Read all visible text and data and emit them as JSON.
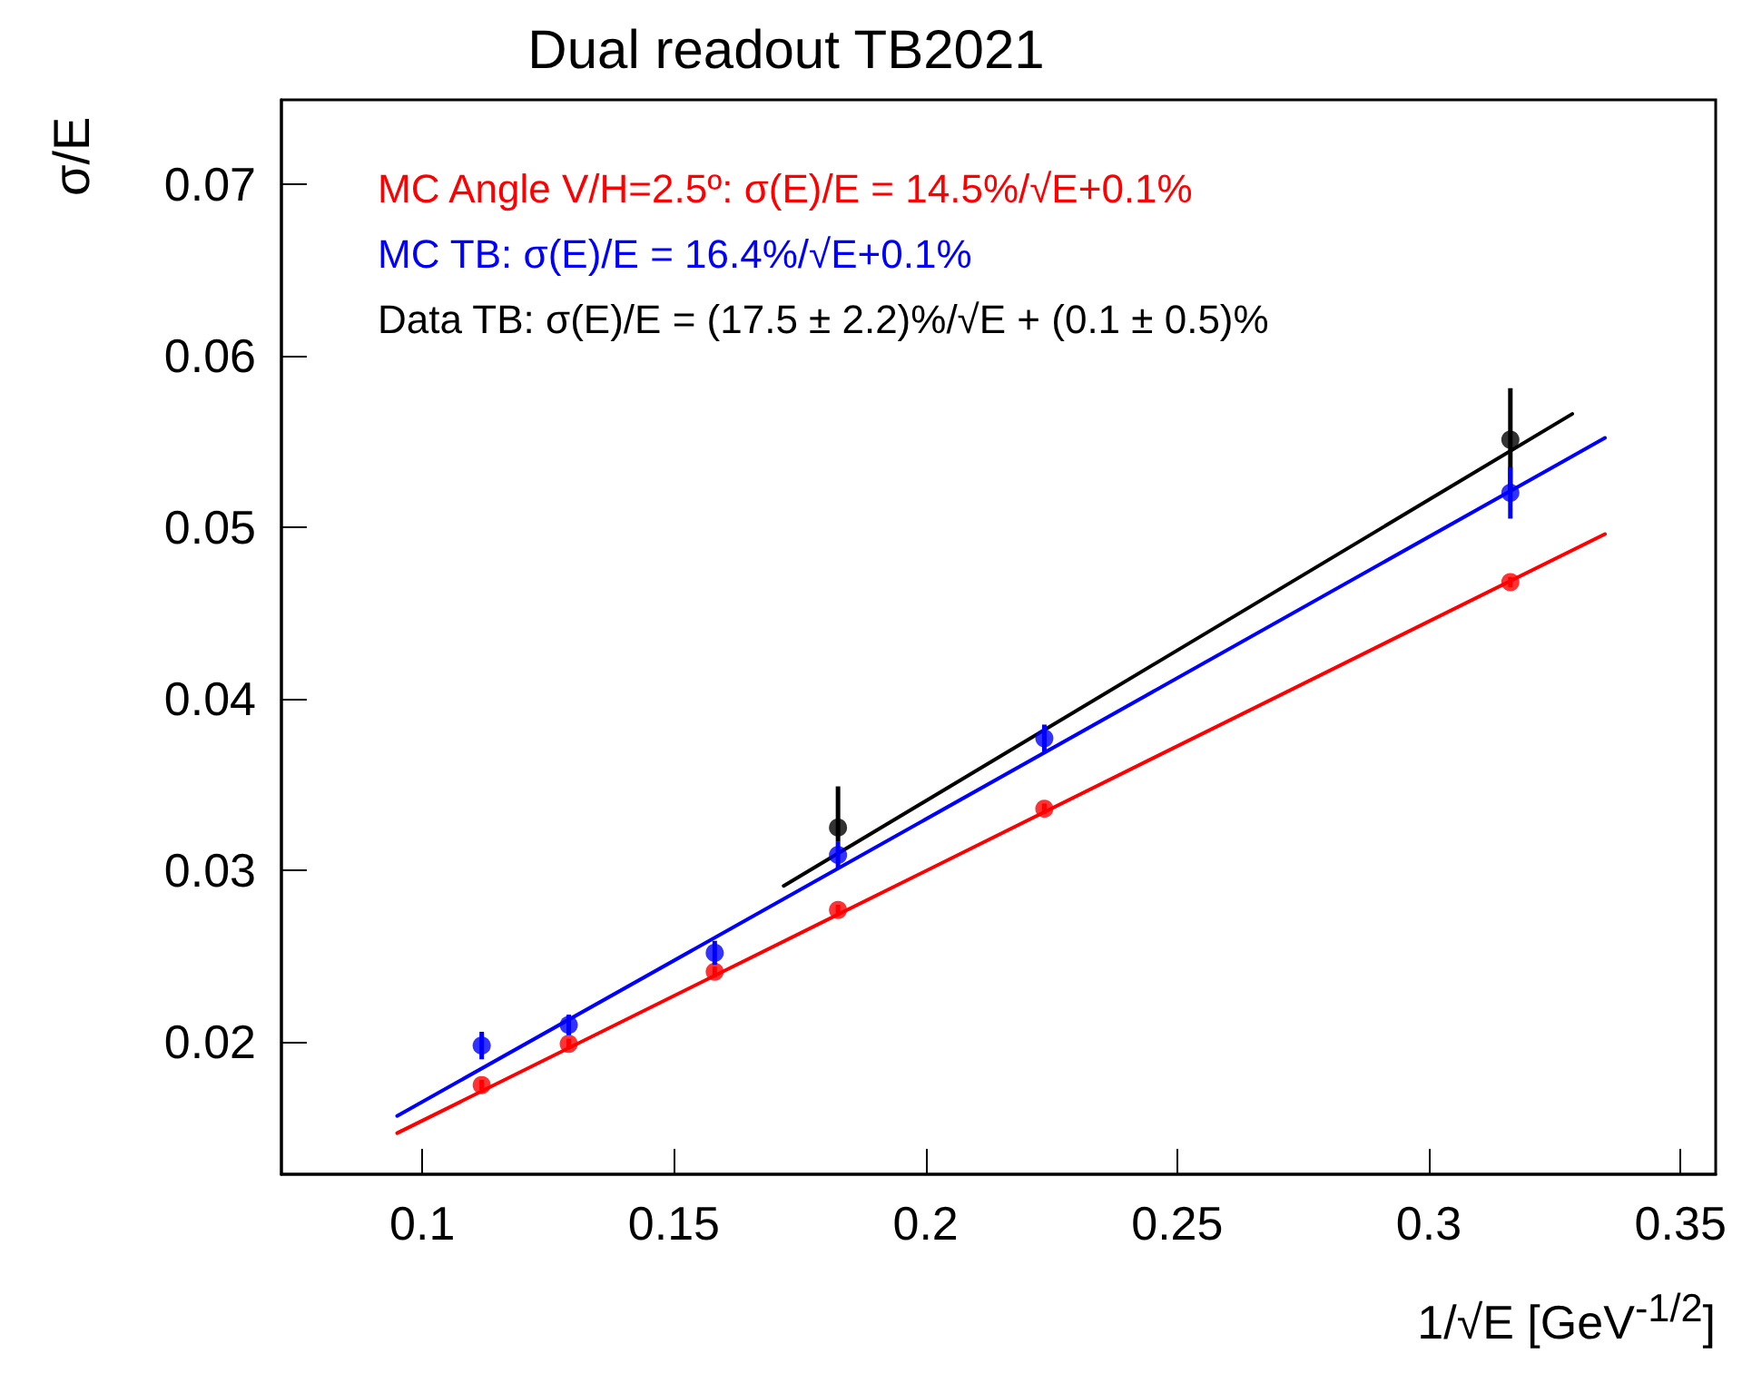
{
  "chart_data": {
    "type": "scatter",
    "title": "Dual readout TB2021",
    "xlabel": "1/√E [GeV$^{-1/2}$]",
    "ylabel": "σ/E",
    "xlim": [
      0.072,
      0.357
    ],
    "xticks": [
      0.1,
      0.15,
      0.2,
      0.25,
      0.3,
      0.35
    ],
    "ylim": [
      0.0123,
      0.0749
    ],
    "yticks": [
      0.02,
      0.03,
      0.04,
      0.05,
      0.06,
      0.07
    ],
    "grid": false,
    "legend": "top left",
    "marker": "circle",
    "line_style": "solid",
    "series": [
      {
        "type": "line",
        "name": "MC Angle V/H=2.5º: σ(E)/E = 14.5%/√E+0.1%",
        "color": "#ff0000",
        "marker": "none",
        "x": [
          0.095,
          0.335
        ],
        "values": [
          0.0147,
          0.0496
        ]
      },
      {
        "type": "line",
        "name": "MC TB: σ(E)/E = 16.4%/√E+0.1%",
        "color": "#0000ff",
        "marker": "none",
        "x": [
          0.095,
          0.335
        ],
        "values": [
          0.0157,
          0.0552
        ]
      },
      {
        "type": "line",
        "name": "Data TB: σ(E)/E = (17.5 ± 2.2)%/√E + (0.1 ± 0.5)%",
        "color": "#000000",
        "marker": "none",
        "x": [
          0.1718,
          0.3285
        ],
        "values": [
          0.0291,
          0.0566
        ]
      },
      {
        "color": "#ff0000",
        "x": [
          0.1118,
          0.1291,
          0.1581,
          0.1826,
          0.2236,
          0.3162
        ],
        "values": [
          0.0175,
          0.0199,
          0.0241,
          0.0277,
          0.0336,
          0.0468
        ],
        "errors": [
          0.0003,
          0.0003,
          0.0003,
          0.0003,
          0.0003,
          0.0003
        ]
      },
      {
        "color": "#000000",
        "x": [
          0.1826,
          0.2236,
          0.3162
        ],
        "values": [
          0.0325,
          null,
          0.0551
        ],
        "errors": [
          [
            0.0317,
            0.0349
          ],
          null,
          0.003
        ]
      },
      {
        "color": "#0000ff",
        "x": [
          0.1118,
          0.1291,
          0.1581,
          0.1826,
          0.2236,
          0.3162
        ],
        "values": [
          0.0198,
          0.021,
          0.0252,
          0.0309,
          0.0377,
          0.052
        ],
        "errors": [
          0.0008,
          0.0006,
          0.0007,
          0.0008,
          0.0008,
          0.0015
        ]
      }
    ]
  }
}
